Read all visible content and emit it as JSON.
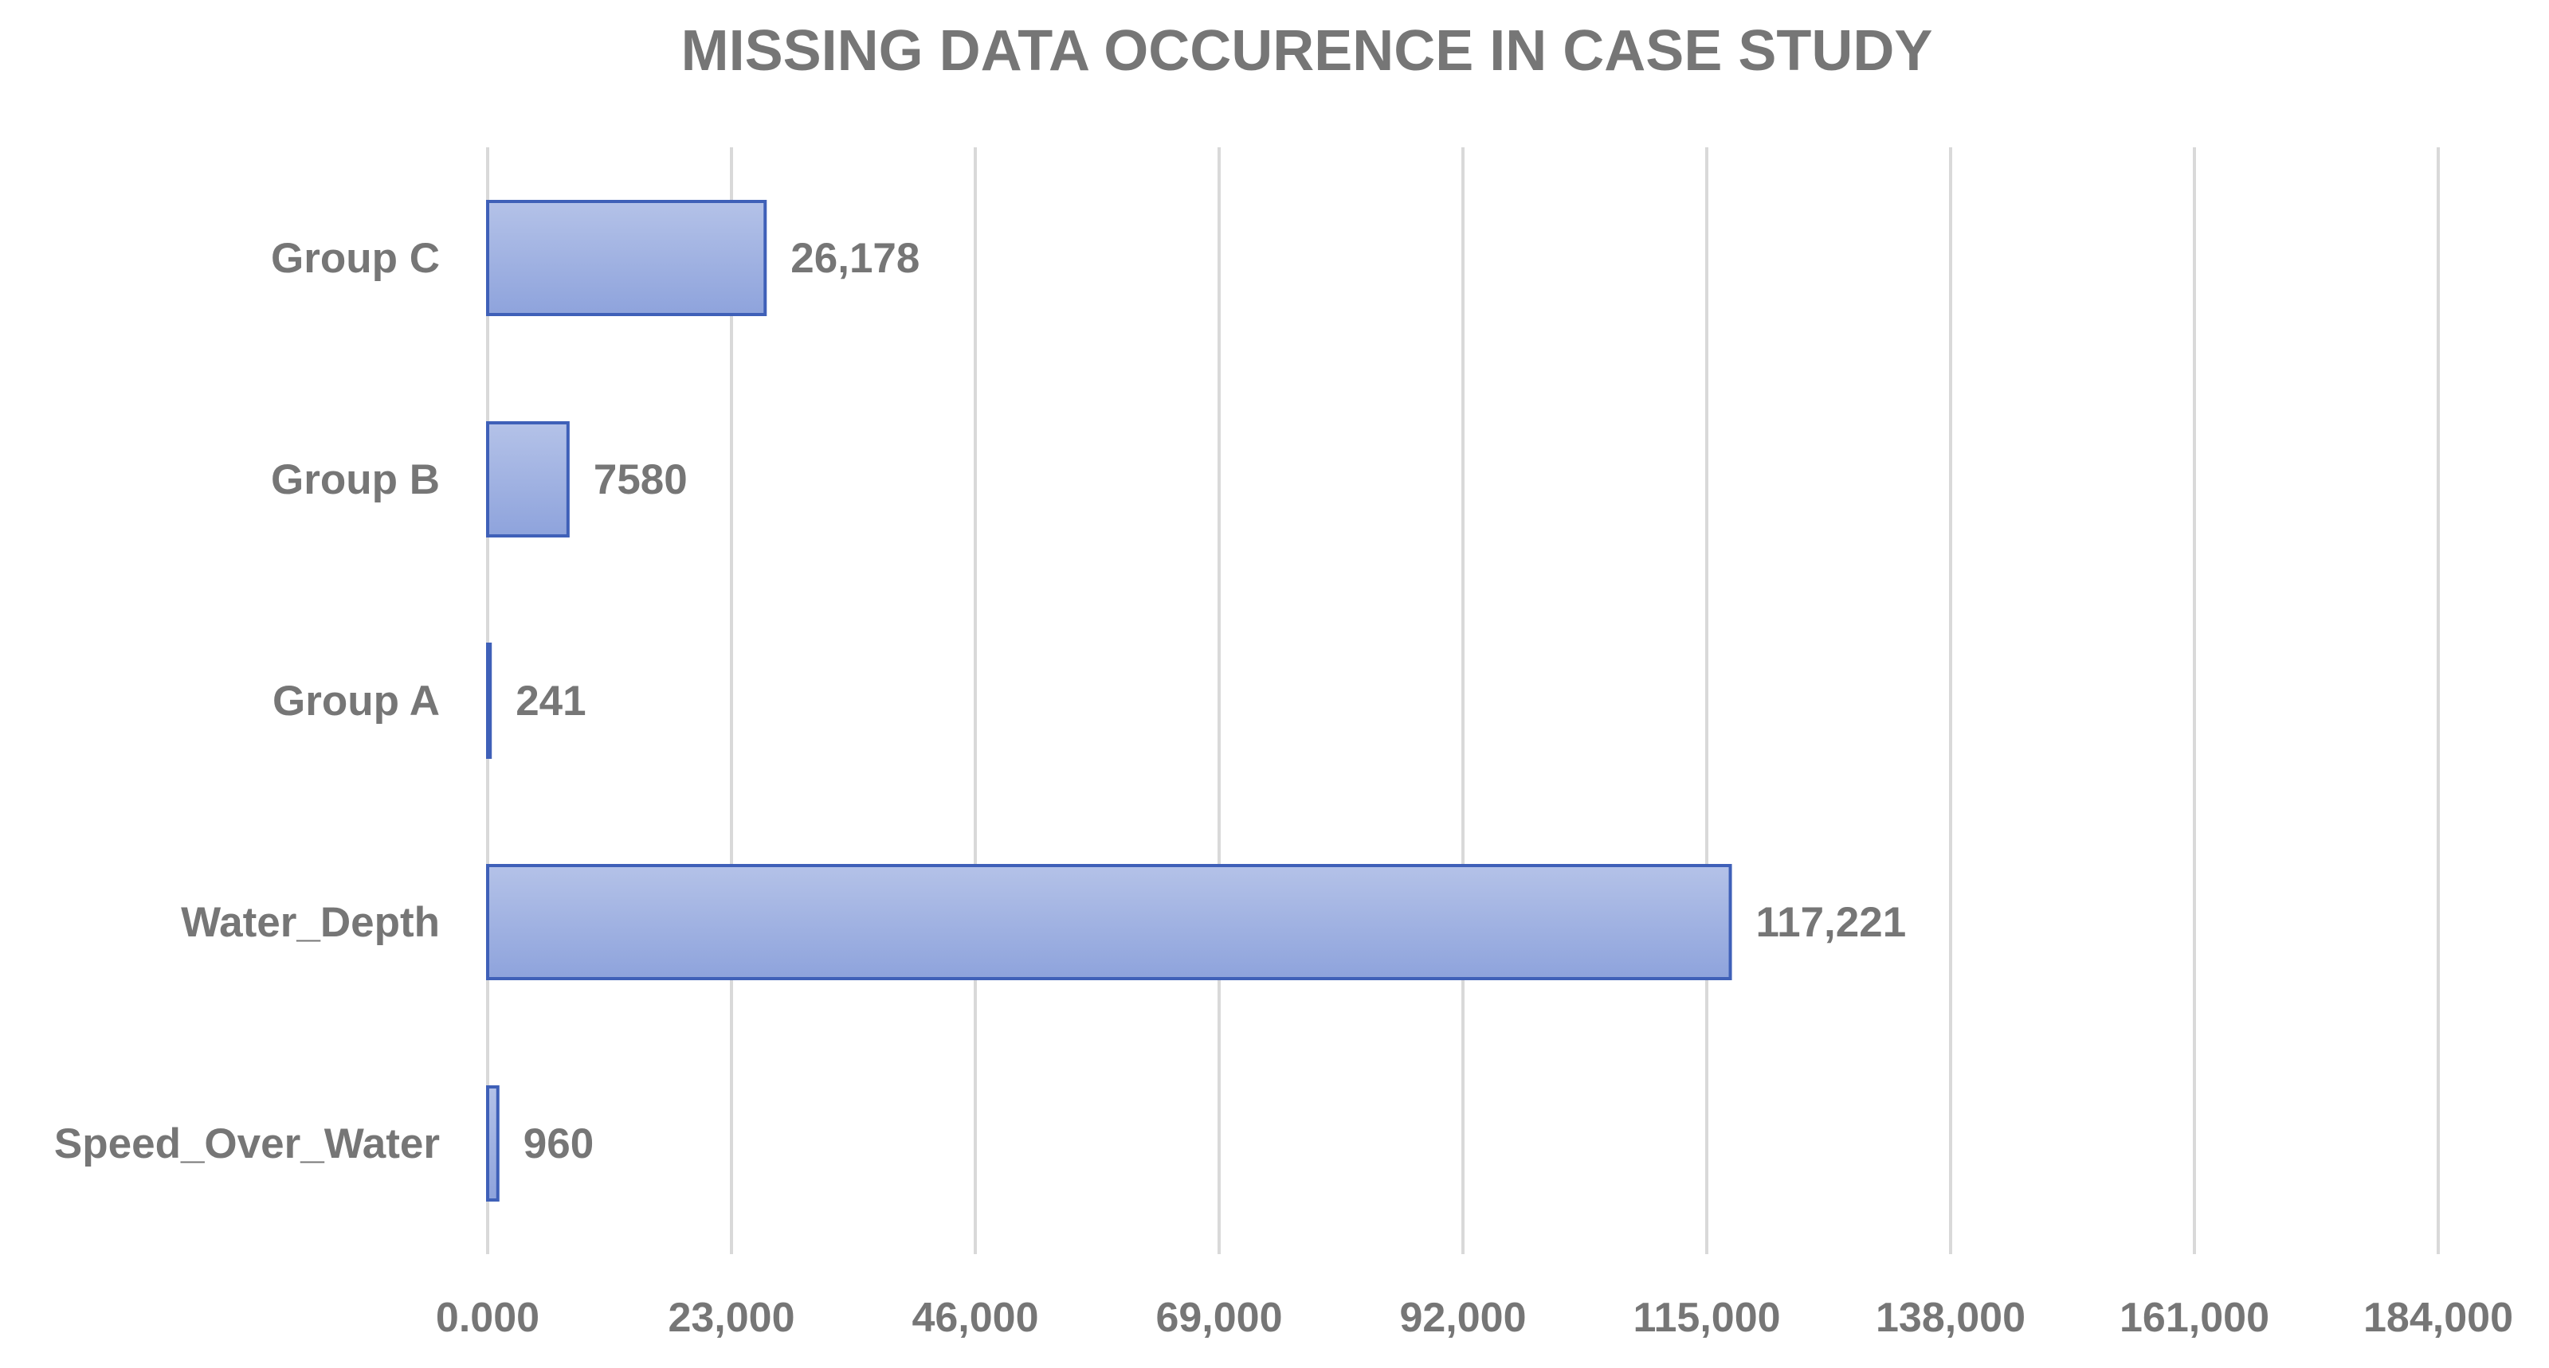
{
  "chart_data": {
    "type": "bar",
    "orientation": "horizontal",
    "title": "MISSING DATA OCCURENCE IN CASE STUDY",
    "xlabel": "",
    "ylabel": "",
    "categories": [
      "Group C",
      "Group B",
      "Group A",
      "Water_Depth",
      "Speed_Over_Water"
    ],
    "values": [
      26178,
      7580,
      241,
      117221,
      960
    ],
    "data_labels": [
      "26,178",
      "7580",
      "241",
      "117,221",
      "960"
    ],
    "xlim": [
      0,
      184000
    ],
    "x_ticks": [
      0,
      23000,
      46000,
      69000,
      92000,
      115000,
      138000,
      161000,
      184000
    ],
    "x_tick_labels": [
      "0.000",
      "23,000",
      "46,000",
      "69,000",
      "92,000",
      "115,000",
      "138,000",
      "161,000",
      "184,000"
    ],
    "grid": "vertical",
    "legend": "none",
    "bar_color_light": "#b4c2e8",
    "bar_color_dark": "#8ea3dc",
    "bar_border_color": "#3f60b8",
    "text_color": "#767676",
    "grid_color": "#d9d9d9"
  }
}
